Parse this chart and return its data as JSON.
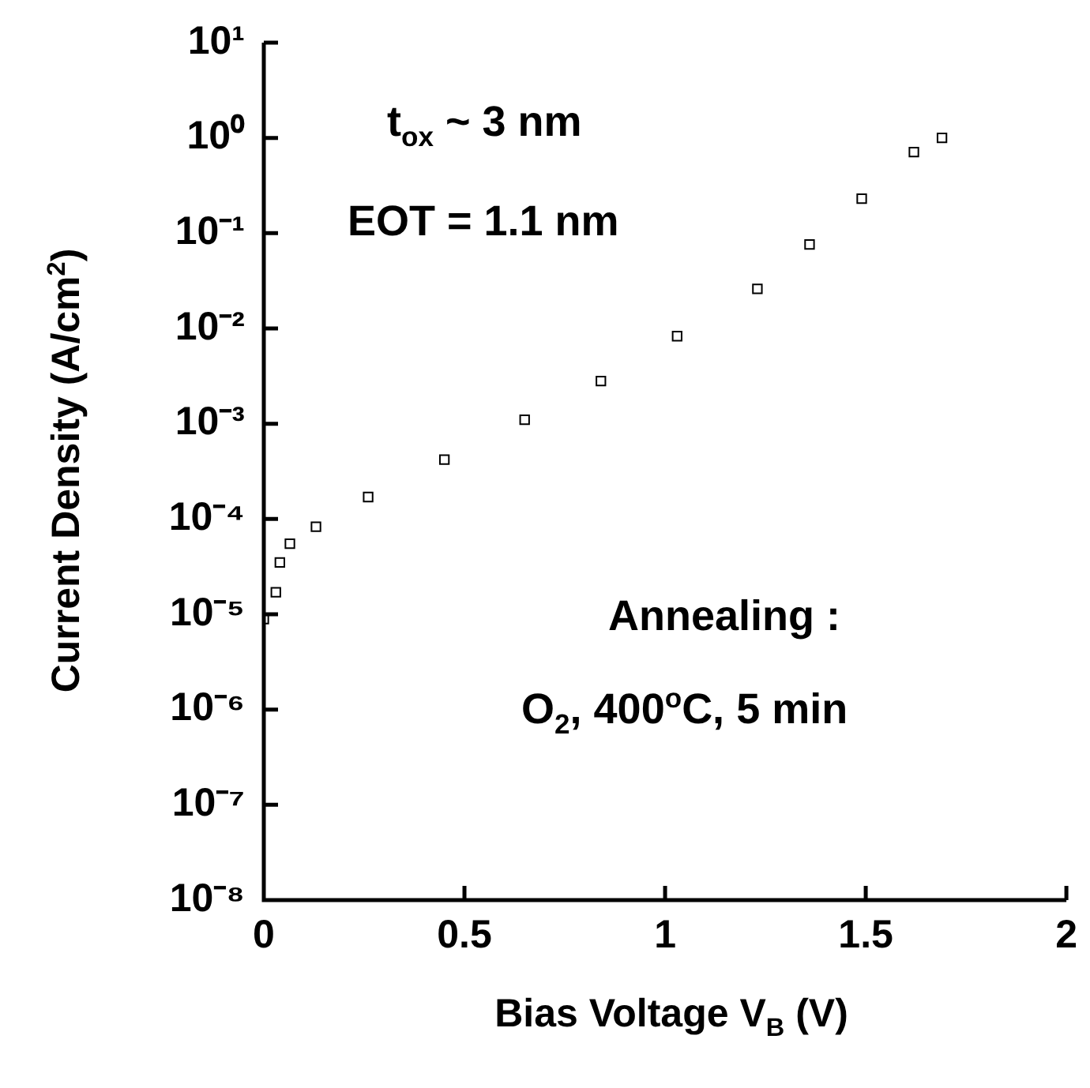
{
  "chart_data": {
    "type": "scatter",
    "xlabel": "Bias Voltage V$_{B}$ (V)",
    "ylabel": "Current Density (A/cm$^{2}$)",
    "x": [
      0.0,
      0.03,
      0.04,
      0.065,
      0.13,
      0.26,
      0.45,
      0.65,
      0.84,
      1.03,
      1.23,
      1.36,
      1.49,
      1.62,
      1.69
    ],
    "series": [
      {
        "color": "#000000",
        "values": [
          8.9e-06,
          1.7e-05,
          3.5e-05,
          5.5e-05,
          8.3e-05,
          0.00017,
          0.00042,
          0.0011,
          0.0028,
          0.0083,
          0.026,
          0.076,
          0.23,
          0.71,
          1.0
        ]
      }
    ],
    "xlim": [
      0,
      2
    ],
    "xticks": [
      0,
      0.5,
      1,
      1.5,
      2
    ],
    "ylim": [
      1e-08,
      10
    ],
    "yticks": [
      {
        "value": 10,
        "label": "10¹"
      },
      {
        "value": 1,
        "label": "10⁰"
      },
      {
        "value": 0.1,
        "label": "10⁻¹"
      },
      {
        "value": 0.01,
        "label": "10⁻²"
      },
      {
        "value": 0.001,
        "label": "10⁻³"
      },
      {
        "value": 0.0001,
        "label": "10⁻⁴"
      },
      {
        "value": 1e-05,
        "label": "10⁻⁵"
      },
      {
        "value": 1e-06,
        "label": "10⁻⁶"
      },
      {
        "value": 1e-07,
        "label": "10⁻⁷"
      },
      {
        "value": 1e-08,
        "label": "10⁻⁸"
      }
    ],
    "log": "y",
    "grid": false,
    "legend": false,
    "marker": "square",
    "annotations": [
      "t$_{ox}$ ~ 3 nm",
      "EOT = 1.1 nm",
      "Annealing :",
      "O$_{2}$, 400$^{o}$C, 5 min"
    ]
  }
}
